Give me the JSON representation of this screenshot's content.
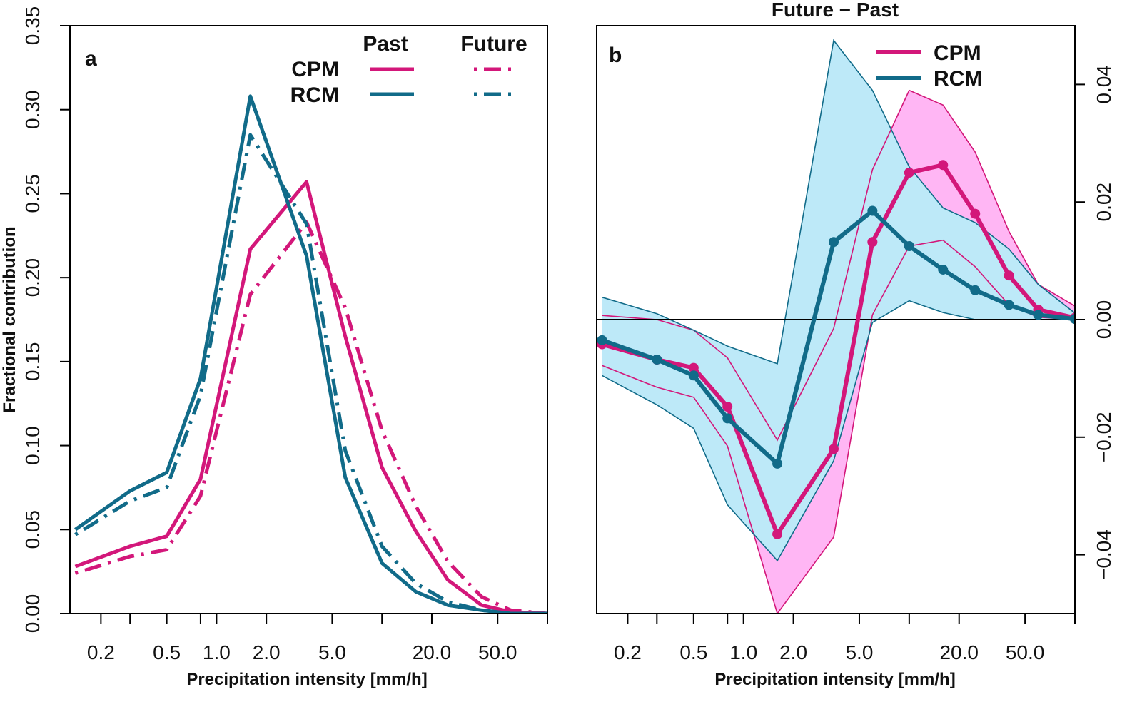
{
  "colors": {
    "cpm": "#d3177a",
    "rcm": "#116b89",
    "cpm_fill": "#ffb6f4",
    "rcm_fill": "#bde9f8"
  },
  "chart_data": [
    {
      "id": "a",
      "type": "line",
      "panel_label": "a",
      "title": "",
      "xlabel": "Precipitation intensity [mm/h]",
      "ylabel": "Fractional contribution",
      "x_scale": "log",
      "xlim": [
        0.13,
        100
      ],
      "ylim": [
        0,
        0.35
      ],
      "x_ticks": [
        0.2,
        0.5,
        1.0,
        2.0,
        5.0,
        20.0,
        50.0
      ],
      "x_tick_labels": [
        "0.2",
        "0.5",
        "1.0",
        "2.0",
        "5.0",
        "20.0",
        "50.0"
      ],
      "y_ticks": [
        0,
        0.05,
        0.1,
        0.15,
        0.2,
        0.25,
        0.3,
        0.35
      ],
      "y_tick_labels": [
        "0.00",
        "0.05",
        "0.10",
        "0.15",
        "0.20",
        "0.25",
        "0.30",
        "0.35"
      ],
      "x": [
        0.14,
        0.3,
        0.5,
        0.8,
        1.6,
        3.5,
        6.0,
        10.0,
        16.0,
        25.0,
        40.0,
        60.0,
        100.0
      ],
      "series": [
        {
          "name": "CPM Past",
          "model": "CPM",
          "period": "Past",
          "style": "solid",
          "values": [
            0.028,
            0.04,
            0.046,
            0.08,
            0.217,
            0.257,
            0.165,
            0.087,
            0.049,
            0.02,
            0.005,
            0.001,
            0.0
          ]
        },
        {
          "name": "CPM Future",
          "model": "CPM",
          "period": "Future",
          "style": "dashdot",
          "values": [
            0.024,
            0.034,
            0.038,
            0.07,
            0.19,
            0.233,
            0.182,
            0.109,
            0.064,
            0.031,
            0.01,
            0.002,
            0.0
          ]
        },
        {
          "name": "RCM Past",
          "model": "RCM",
          "period": "Past",
          "style": "solid",
          "values": [
            0.05,
            0.073,
            0.084,
            0.14,
            0.308,
            0.213,
            0.081,
            0.03,
            0.013,
            0.005,
            0.002,
            0.0,
            0.0
          ]
        },
        {
          "name": "RCM Future",
          "model": "RCM",
          "period": "Future",
          "style": "dashdot",
          "values": [
            0.047,
            0.067,
            0.075,
            0.13,
            0.285,
            0.232,
            0.097,
            0.04,
            0.018,
            0.007,
            0.002,
            0.0,
            0.0
          ]
        }
      ],
      "legend": {
        "period_headers": [
          "Past",
          "Future"
        ],
        "rows": [
          "CPM",
          "RCM"
        ],
        "position": "top-right"
      }
    },
    {
      "id": "b",
      "type": "line",
      "panel_label": "b",
      "title": "Future − Past",
      "xlabel": "Precipitation intensity [mm/h]",
      "ylabel": "",
      "x_scale": "log",
      "xlim": [
        0.13,
        100
      ],
      "ylim": [
        -0.05,
        0.05
      ],
      "y_axis_side": "right",
      "x_ticks": [
        0.2,
        0.5,
        1.0,
        2.0,
        5.0,
        20.0,
        50.0
      ],
      "x_tick_labels": [
        "0.2",
        "0.5",
        "1.0",
        "2.0",
        "5.0",
        "20.0",
        "50.0"
      ],
      "y_ticks": [
        -0.04,
        -0.02,
        0.0,
        0.02,
        0.04
      ],
      "y_tick_labels": [
        "−0.04",
        "−0.02",
        "0.00",
        "0.02",
        "0.04"
      ],
      "x": [
        0.14,
        0.3,
        0.5,
        0.8,
        1.6,
        3.5,
        6.0,
        10.0,
        16.0,
        25.0,
        40.0,
        60.0,
        100.0
      ],
      "series": [
        {
          "name": "CPM",
          "model": "CPM",
          "values": [
            -0.0042,
            -0.0068,
            -0.0082,
            -0.0148,
            -0.0365,
            -0.022,
            0.0132,
            0.025,
            0.0263,
            0.018,
            0.0075,
            0.0017,
            0.0003
          ],
          "band_low": [
            -0.0078,
            -0.0115,
            -0.0132,
            -0.0215,
            -0.05,
            -0.037,
            0.0008,
            0.0125,
            0.0135,
            0.009,
            0.0025,
            0.0004,
            0.0
          ],
          "band_high": [
            0.0007,
            0.0,
            -0.0018,
            -0.0065,
            -0.0205,
            -0.0015,
            0.0255,
            0.039,
            0.0365,
            0.0285,
            0.015,
            0.006,
            0.0023
          ]
        },
        {
          "name": "RCM",
          "model": "RCM",
          "values": [
            -0.0035,
            -0.0068,
            -0.0095,
            -0.0168,
            -0.0245,
            0.0132,
            0.0185,
            0.0125,
            0.0085,
            0.005,
            0.0025,
            0.0008,
            0.0001
          ],
          "band_low": [
            -0.0095,
            -0.0145,
            -0.0185,
            -0.0315,
            -0.041,
            -0.024,
            -0.0005,
            0.0032,
            0.0012,
            0.0,
            0.0,
            0.0,
            0.0
          ],
          "band_high": [
            0.0038,
            0.001,
            -0.0018,
            -0.0045,
            -0.0075,
            0.0475,
            0.039,
            0.026,
            0.019,
            0.0165,
            0.012,
            0.006,
            0.0011
          ]
        }
      ],
      "legend": {
        "rows": [
          "CPM",
          "RCM"
        ],
        "position": "top-right"
      }
    }
  ]
}
